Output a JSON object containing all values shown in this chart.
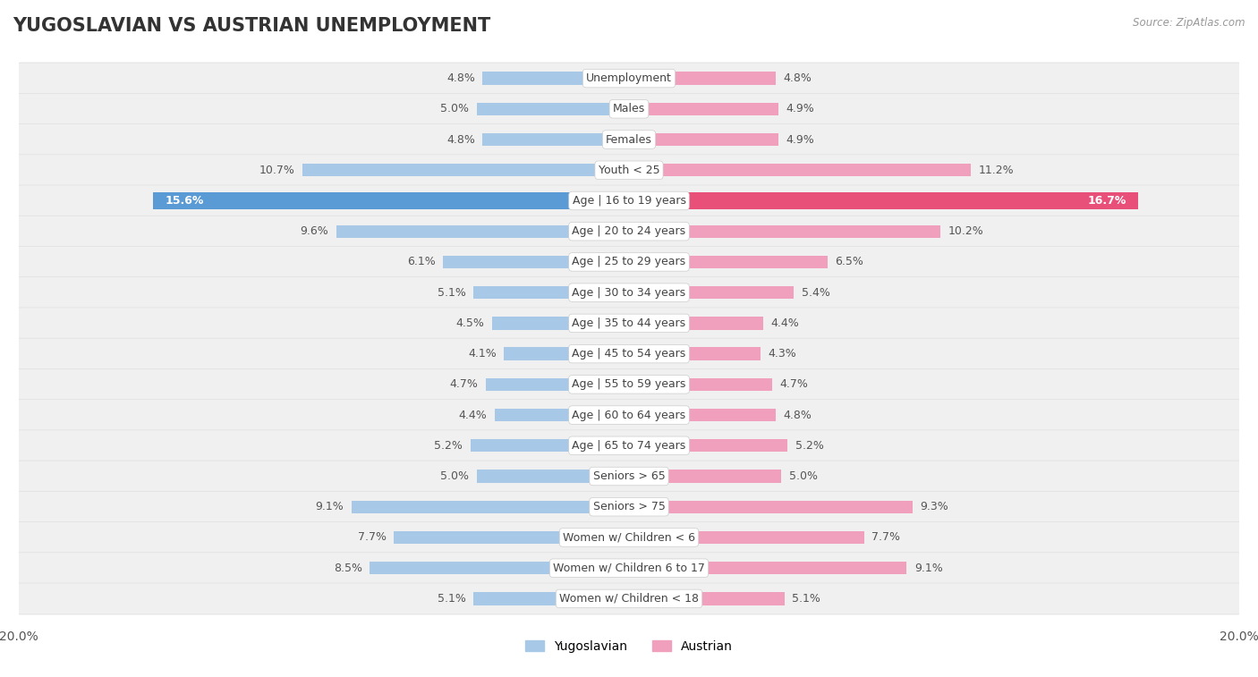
{
  "title": "YUGOSLAVIAN VS AUSTRIAN UNEMPLOYMENT",
  "source": "Source: ZipAtlas.com",
  "categories": [
    "Unemployment",
    "Males",
    "Females",
    "Youth < 25",
    "Age | 16 to 19 years",
    "Age | 20 to 24 years",
    "Age | 25 to 29 years",
    "Age | 30 to 34 years",
    "Age | 35 to 44 years",
    "Age | 45 to 54 years",
    "Age | 55 to 59 years",
    "Age | 60 to 64 years",
    "Age | 65 to 74 years",
    "Seniors > 65",
    "Seniors > 75",
    "Women w/ Children < 6",
    "Women w/ Children 6 to 17",
    "Women w/ Children < 18"
  ],
  "yugoslavian_values": [
    4.8,
    5.0,
    4.8,
    10.7,
    15.6,
    9.6,
    6.1,
    5.1,
    4.5,
    4.1,
    4.7,
    4.4,
    5.2,
    5.0,
    9.1,
    7.7,
    8.5,
    5.1
  ],
  "austrian_values": [
    4.8,
    4.9,
    4.9,
    11.2,
    16.7,
    10.2,
    6.5,
    5.4,
    4.4,
    4.3,
    4.7,
    4.8,
    5.2,
    5.0,
    9.3,
    7.7,
    9.1,
    5.1
  ],
  "yugoslav_color": "#a8c8e8",
  "austrian_color": "#f0a0bc",
  "yugoslav_highlight": "#5b9bd5",
  "austrian_highlight": "#e8507a",
  "bg_color": "#ffffff",
  "row_bg_color": "#f0f0f0",
  "row_border_color": "#d8d8d8",
  "max_val": 20.0,
  "legend_yugoslav": "Yugoslavian",
  "legend_austrian": "Austrian",
  "title_fontsize": 15,
  "label_fontsize": 9,
  "value_fontsize": 9
}
